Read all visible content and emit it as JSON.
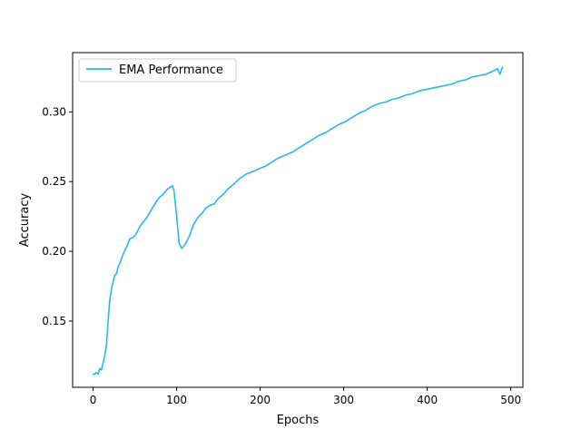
{
  "chart_data": {
    "type": "line",
    "title": "",
    "xlabel": "Epochs",
    "ylabel": "Accuracy",
    "xlim": [
      -24.5,
      514.5
    ],
    "ylim": [
      0.1025,
      0.3425
    ],
    "x_ticks": [
      0,
      100,
      200,
      300,
      400,
      500
    ],
    "y_ticks": [
      0.15,
      0.2,
      0.25,
      0.3
    ],
    "x_tick_labels": [
      "0",
      "100",
      "200",
      "300",
      "400",
      "500"
    ],
    "y_tick_labels": [
      "0.15",
      "0.20",
      "0.25",
      "0.30"
    ],
    "grid": false,
    "legend_position": "top-left",
    "series": [
      {
        "name": "EMA Performance",
        "color": "#29b6f6",
        "x": [
          0,
          2,
          4,
          6,
          8,
          10,
          12,
          14,
          16,
          18,
          20,
          22,
          24,
          26,
          28,
          30,
          33,
          36,
          40,
          44,
          48,
          52,
          56,
          60,
          64,
          68,
          72,
          76,
          80,
          84,
          88,
          92,
          95,
          97,
          100,
          103,
          106,
          109,
          112,
          116,
          120,
          125,
          130,
          135,
          140,
          145,
          150,
          156,
          162,
          168,
          175,
          182,
          190,
          198,
          206,
          214,
          222,
          230,
          238,
          246,
          254,
          262,
          270,
          278,
          286,
          294,
          302,
          310,
          318,
          326,
          334,
          342,
          350,
          358,
          366,
          374,
          382,
          390,
          398,
          406,
          414,
          422,
          430,
          438,
          446,
          454,
          462,
          470,
          478,
          484,
          487,
          490
        ],
        "y": [
          0.112,
          0.112,
          0.113,
          0.112,
          0.116,
          0.115,
          0.12,
          0.125,
          0.133,
          0.15,
          0.165,
          0.173,
          0.178,
          0.183,
          0.184,
          0.189,
          0.193,
          0.198,
          0.203,
          0.209,
          0.21,
          0.213,
          0.218,
          0.221,
          0.224,
          0.228,
          0.232,
          0.236,
          0.239,
          0.241,
          0.244,
          0.246,
          0.247,
          0.243,
          0.225,
          0.206,
          0.202,
          0.204,
          0.207,
          0.212,
          0.219,
          0.224,
          0.227,
          0.231,
          0.233,
          0.234,
          0.238,
          0.241,
          0.245,
          0.248,
          0.252,
          0.255,
          0.257,
          0.259,
          0.261,
          0.264,
          0.267,
          0.269,
          0.271,
          0.274,
          0.277,
          0.28,
          0.283,
          0.285,
          0.288,
          0.291,
          0.293,
          0.296,
          0.299,
          0.301,
          0.304,
          0.306,
          0.307,
          0.309,
          0.31,
          0.312,
          0.313,
          0.315,
          0.316,
          0.317,
          0.318,
          0.319,
          0.32,
          0.322,
          0.323,
          0.325,
          0.326,
          0.327,
          0.329,
          0.331,
          0.327,
          0.332
        ]
      }
    ]
  }
}
